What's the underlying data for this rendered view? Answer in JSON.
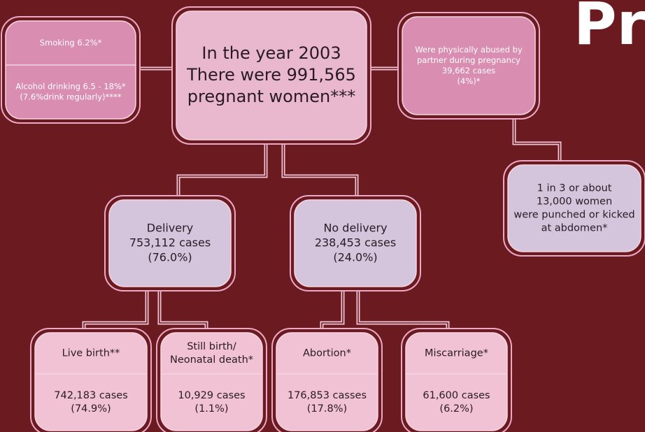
{
  "title_fragment": "Pr",
  "nodes": [
    {
      "sections": [
        [
          "In the year 2003",
          "There were 991,565",
          "pregnant women***"
        ]
      ]
    },
    {
      "sections": [
        [
          "Smoking 6.2%*"
        ],
        [
          "Alcohol drinking 6.5 - 18%*",
          "(7.6%drink regularly)****"
        ]
      ]
    },
    {
      "sections": [
        [
          "Were physically abused by",
          "partner during pregnancy",
          "39,662 cases",
          "(4%)*"
        ]
      ]
    },
    {
      "sections": [
        [
          "1 in 3 or about",
          "13,000 women",
          "were punched or kicked",
          "at abdomen*"
        ]
      ]
    },
    {
      "sections": [
        [
          "Delivery",
          "753,112 cases",
          "(76.0%)"
        ]
      ]
    },
    {
      "sections": [
        [
          "No delivery",
          "238,453 cases",
          "(24.0%)"
        ]
      ]
    },
    {
      "sections": [
        [
          "Live birth**"
        ],
        [
          "742,183 cases",
          "(74.9%)"
        ]
      ]
    },
    {
      "sections": [
        [
          "Still birth/",
          "Neonatal death*"
        ],
        [
          "10,929 cases",
          "(1.1%)"
        ]
      ]
    },
    {
      "sections": [
        [
          "Abortion*"
        ],
        [
          "176,853 casses",
          "(17.8%)"
        ]
      ]
    },
    {
      "sections": [
        [
          "Miscarriage*"
        ],
        [
          "61,600 cases",
          "(6.2%)"
        ]
      ]
    }
  ]
}
